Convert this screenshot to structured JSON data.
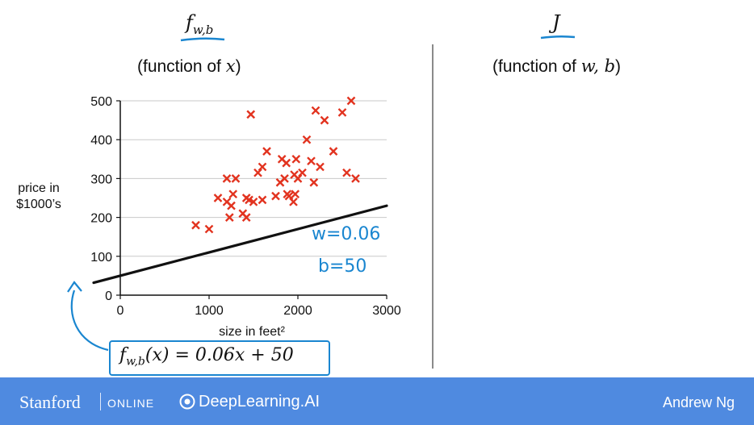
{
  "left_title": "f",
  "left_title_sub": "w,b",
  "left_subtitle_prefix": "(function of ",
  "left_subtitle_var": "x",
  "left_subtitle_suffix": ")",
  "right_title": "J",
  "right_subtitle_prefix": "(function of ",
  "right_subtitle_var": "w, b",
  "right_subtitle_suffix": ")",
  "formula_lhs": "f",
  "formula_sub": "w,b",
  "formula_rhs": "(x) = 0.06x + 50",
  "annotation_w": "w=0.06",
  "annotation_b": "b=50",
  "ylabel_line1": "price in",
  "ylabel_line2": "$1000’s",
  "footer": {
    "stanford": "Stanford",
    "online": "ONLINE",
    "deeplearning": "DeepLearning.AI",
    "author": "Andrew Ng"
  },
  "colors": {
    "points": "#e2331f",
    "annotation": "#1a86d0",
    "footer_bg": "#4f8ae0",
    "line": "#111111"
  },
  "chart_data": {
    "type": "scatter",
    "xlabel": "size in feet²",
    "ylabel": "price in $1000’s",
    "xlim": [
      0,
      3000
    ],
    "ylim": [
      0,
      500
    ],
    "xticks": [
      0,
      1000,
      2000,
      3000
    ],
    "yticks": [
      0,
      100,
      200,
      300,
      400,
      500
    ],
    "grid": true,
    "points": [
      [
        850,
        180
      ],
      [
        1000,
        170
      ],
      [
        1100,
        250
      ],
      [
        1200,
        300
      ],
      [
        1200,
        240
      ],
      [
        1230,
        200
      ],
      [
        1250,
        230
      ],
      [
        1270,
        260
      ],
      [
        1300,
        300
      ],
      [
        1380,
        210
      ],
      [
        1420,
        200
      ],
      [
        1420,
        250
      ],
      [
        1450,
        245
      ],
      [
        1470,
        465
      ],
      [
        1500,
        240
      ],
      [
        1550,
        315
      ],
      [
        1600,
        330
      ],
      [
        1600,
        245
      ],
      [
        1650,
        370
      ],
      [
        1750,
        255
      ],
      [
        1800,
        290
      ],
      [
        1820,
        350
      ],
      [
        1850,
        300
      ],
      [
        1870,
        340
      ],
      [
        1880,
        260
      ],
      [
        1900,
        255
      ],
      [
        1950,
        240
      ],
      [
        1960,
        310
      ],
      [
        1970,
        260
      ],
      [
        1980,
        350
      ],
      [
        2000,
        300
      ],
      [
        2050,
        315
      ],
      [
        2100,
        400
      ],
      [
        2150,
        345
      ],
      [
        2180,
        290
      ],
      [
        2200,
        475
      ],
      [
        2250,
        330
      ],
      [
        2300,
        450
      ],
      [
        2400,
        370
      ],
      [
        2500,
        470
      ],
      [
        2550,
        315
      ],
      [
        2600,
        500
      ],
      [
        2650,
        300
      ]
    ],
    "line": {
      "w": 0.06,
      "b": 50,
      "x_range": [
        -300,
        3000
      ]
    }
  }
}
